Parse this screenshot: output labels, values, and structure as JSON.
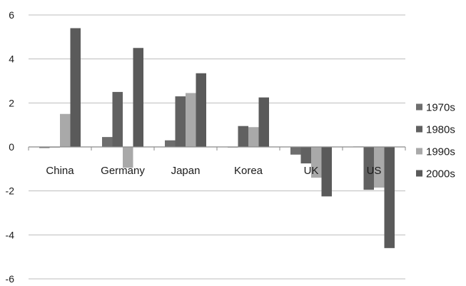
{
  "chart_data": {
    "type": "bar",
    "categories": [
      "China",
      "Germany",
      "Japan",
      "Korea",
      "UK",
      "US"
    ],
    "series": [
      {
        "name": "1970s",
        "values": [
          -0.05,
          0.45,
          0.3,
          0.0,
          -0.35,
          0.02
        ]
      },
      {
        "name": "1980s",
        "values": [
          0.0,
          2.5,
          2.3,
          0.95,
          -0.75,
          -1.95
        ]
      },
      {
        "name": "1990s",
        "values": [
          1.5,
          -0.95,
          2.45,
          0.9,
          -1.4,
          -1.85
        ]
      },
      {
        "name": "2000s",
        "values": [
          5.4,
          4.5,
          3.35,
          2.25,
          -2.25,
          -4.6
        ]
      }
    ],
    "title": "",
    "xlabel": "",
    "ylabel": "",
    "ylim": [
      -6,
      6
    ],
    "yticks": [
      6,
      4,
      2,
      0,
      -2,
      -4,
      -6
    ],
    "grid": true,
    "legend_position": "right",
    "colors": {
      "1970s": "#6e6e6e",
      "1980s": "#616161",
      "1990s": "#a9a9a9",
      "2000s": "#5a5a5a",
      "gridline": "#bdbdbd",
      "text": "#1a1a1a"
    }
  }
}
